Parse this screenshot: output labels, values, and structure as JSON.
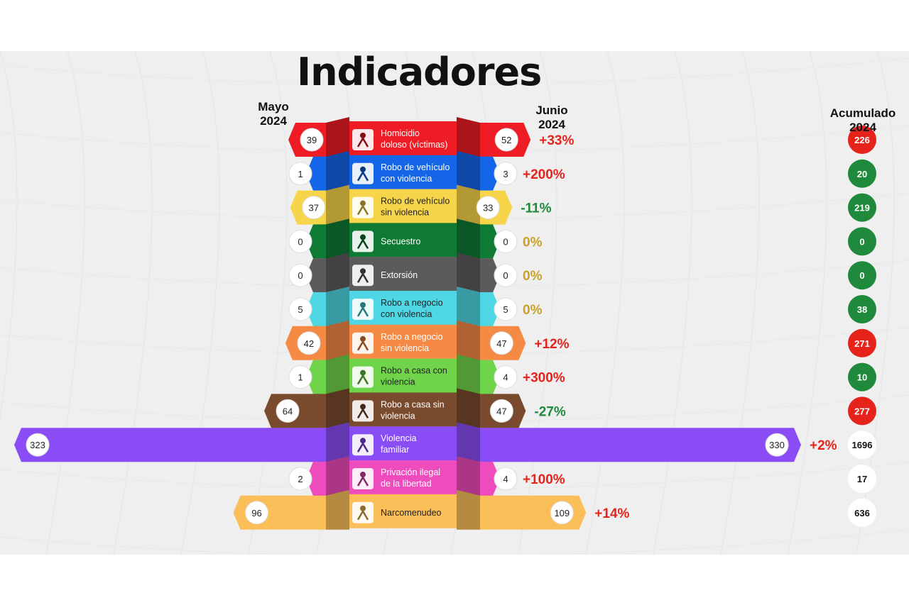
{
  "title": "Indicadores",
  "headers": {
    "left_line1": "Mayo",
    "left_line2": "2024",
    "right_line1": "Junio",
    "right_line2": "2024",
    "acc_line1": "Acumulado",
    "acc_line2": "2024"
  },
  "colors": {
    "increase": "#e5231b",
    "decrease": "#1f8a3b",
    "neutral": "#c9a227",
    "circle_red": "#e5231b",
    "circle_green": "#1f8a3b",
    "circle_white": "#ffffff"
  },
  "chart_data": {
    "type": "bar",
    "series": [
      {
        "name": "Mayo 2024"
      },
      {
        "name": "Junio 2024"
      },
      {
        "name": "Acumulado 2024"
      }
    ],
    "categories": [
      {
        "label1": "Homicidio",
        "label2": "doloso (víctimas)",
        "mayo": 39,
        "junio": 52,
        "change": "+33%",
        "trend": "up",
        "acumulado": 226,
        "acc_color": "red",
        "color": "#ee1c24",
        "icon": "running-person-icon"
      },
      {
        "label1": "Robo de vehículo",
        "label2": "con violencia",
        "mayo": 1,
        "junio": 3,
        "change": "+200%",
        "trend": "up",
        "acumulado": 20,
        "acc_color": "green",
        "color": "#1565e8",
        "icon": "car-theft-icon"
      },
      {
        "label1": "Robo de vehículo",
        "label2": "sin violencia",
        "mayo": 37,
        "junio": 33,
        "change": "-11%",
        "trend": "down",
        "acumulado": 219,
        "acc_color": "green",
        "color": "#f7d54a",
        "icon": "car-icon"
      },
      {
        "label1": "Secuestro",
        "label2": "",
        "mayo": 0,
        "junio": 0,
        "change": "0%",
        "trend": "flat",
        "acumulado": 0,
        "acc_color": "green",
        "color": "#0e7a33",
        "icon": "bound-hands-icon"
      },
      {
        "label1": "Extorsión",
        "label2": "",
        "mayo": 0,
        "junio": 0,
        "change": "0%",
        "trend": "flat",
        "acumulado": 0,
        "acc_color": "green",
        "color": "#5b5b5b",
        "icon": "money-bag-icon"
      },
      {
        "label1": "Robo a negocio",
        "label2": "con violencia",
        "mayo": 5,
        "junio": 5,
        "change": "0%",
        "trend": "flat",
        "acumulado": 38,
        "acc_color": "green",
        "color": "#4fd6e4",
        "icon": "store-robbery-icon"
      },
      {
        "label1": "Robo a negocio",
        "label2": "sin violencia",
        "mayo": 42,
        "junio": 47,
        "change": "+12%",
        "trend": "up",
        "acumulado": 271,
        "acc_color": "red",
        "color": "#f58a45",
        "icon": "thief-icon"
      },
      {
        "label1": "Robo a casa con",
        "label2": "violencia",
        "mayo": 1,
        "junio": 4,
        "change": "+300%",
        "trend": "up",
        "acumulado": 10,
        "acc_color": "green",
        "color": "#6fd44a",
        "icon": "door-intruder-icon"
      },
      {
        "label1": "Robo a casa sin",
        "label2": "violencia",
        "mayo": 64,
        "junio": 47,
        "change": "-27%",
        "trend": "down",
        "acumulado": 277,
        "acc_color": "red",
        "color": "#7a4a2e",
        "icon": "house-icon"
      },
      {
        "label1": "Violencia",
        "label2": "familiar",
        "mayo": 323,
        "junio": 330,
        "change": "+2%",
        "trend": "up",
        "acumulado": 1696,
        "acc_color": "white",
        "color": "#8a4cf5",
        "icon": "family-icon"
      },
      {
        "label1": "Privación ilegal",
        "label2": "de la libertad",
        "mayo": 2,
        "junio": 4,
        "change": "+100%",
        "trend": "up",
        "acumulado": 17,
        "acc_color": "white",
        "color": "#ee4bbd",
        "icon": "kidnapper-icon"
      },
      {
        "label1": "Narcomenudeo",
        "label2": "",
        "mayo": 96,
        "junio": 109,
        "change": "+14%",
        "trend": "up",
        "acumulado": 636,
        "acc_color": "white",
        "color": "#fbbf5a",
        "icon": "hand-pills-icon"
      }
    ]
  }
}
